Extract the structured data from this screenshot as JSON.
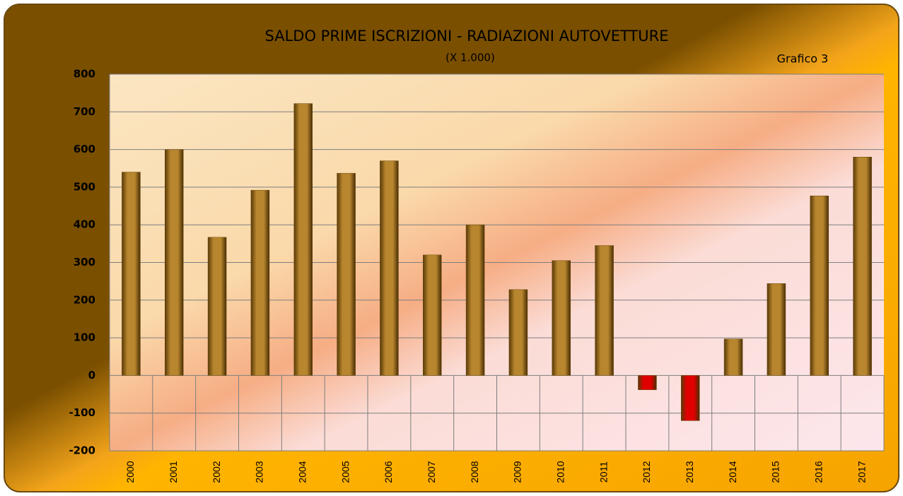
{
  "chart_data": {
    "type": "bar",
    "title": "SALDO PRIME ISCRIZIONI - RADIAZIONI AUTOVETTURE",
    "subtitle": "(X 1.000)",
    "annotation": "Grafico 3",
    "categories": [
      "2000",
      "2001",
      "2002",
      "2003",
      "2004",
      "2005",
      "2006",
      "2007",
      "2008",
      "2009",
      "2010",
      "2011",
      "2012",
      "2013",
      "2014",
      "2015",
      "2016",
      "2017"
    ],
    "values": [
      540,
      600,
      367,
      492,
      722,
      537,
      570,
      320,
      400,
      228,
      305,
      345,
      -38,
      -120,
      97,
      244,
      477,
      580
    ],
    "color": "#b8862e",
    "negative_color": "#e00000",
    "ylim": [
      -200,
      800
    ],
    "yticks": [
      -200,
      -100,
      0,
      100,
      200,
      300,
      400,
      500,
      600,
      700,
      800
    ],
    "grid": true
  }
}
